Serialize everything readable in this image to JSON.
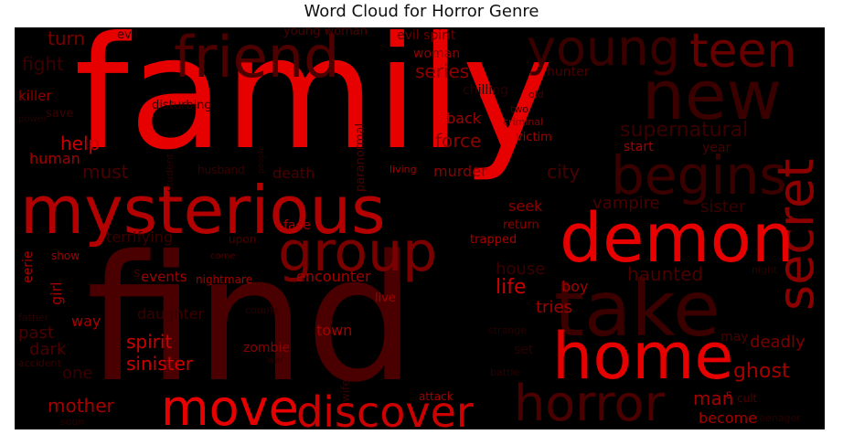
{
  "title": "Word Cloud for Horror Genre",
  "words": [
    {
      "text": "family",
      "color": "#e60000"
    },
    {
      "text": "find",
      "color": "#4a0000"
    },
    {
      "text": "mysterious",
      "color": "#b30000"
    },
    {
      "text": "friend",
      "color": "#4d0000"
    },
    {
      "text": "young",
      "color": "#3a0000"
    },
    {
      "text": "new",
      "color": "#3a0000"
    },
    {
      "text": "teen",
      "color": "#660000"
    },
    {
      "text": "begins",
      "color": "#3a0000"
    },
    {
      "text": "secret",
      "color": "#8c0000"
    },
    {
      "text": "demon",
      "color": "#e60000"
    },
    {
      "text": "group",
      "color": "#7a0000"
    },
    {
      "text": "take",
      "color": "#3a0000"
    },
    {
      "text": "home",
      "color": "#e60000"
    },
    {
      "text": "horror",
      "color": "#4a0000"
    },
    {
      "text": "move",
      "color": "#e60000"
    },
    {
      "text": "discover",
      "color": "#cc0000"
    },
    {
      "text": "turn",
      "color": "#7a0000"
    },
    {
      "text": "fight",
      "color": "#3a0000"
    },
    {
      "text": "evil",
      "color": "#2a0000"
    },
    {
      "text": "young woman",
      "color": "#4d0000"
    },
    {
      "text": "evil spirit",
      "color": "#660000"
    },
    {
      "text": "woman",
      "color": "#8c0000"
    },
    {
      "text": "series",
      "color": "#8c0000"
    },
    {
      "text": "chilling",
      "color": "#2a0000"
    },
    {
      "text": "hunter",
      "color": "#4a0000"
    },
    {
      "text": "old",
      "color": "#4a0000"
    },
    {
      "text": "two",
      "color": "#3a0000"
    },
    {
      "text": "criminal",
      "color": "#8c0000"
    },
    {
      "text": "killer",
      "color": "#8c0000"
    },
    {
      "text": "save",
      "color": "#3a0000"
    },
    {
      "text": "power",
      "color": "#2a0000"
    },
    {
      "text": "disturbing",
      "color": "#2a0000"
    },
    {
      "text": "paranormal",
      "color": "#4d0000"
    },
    {
      "text": "back",
      "color": "#a30000"
    },
    {
      "text": "victim",
      "color": "#a30000"
    },
    {
      "text": "supernatural",
      "color": "#3a0000"
    },
    {
      "text": "help",
      "color": "#cc0000"
    },
    {
      "text": "student",
      "color": "#2a0000"
    },
    {
      "text": "people",
      "color": "#2a0000"
    },
    {
      "text": "force",
      "color": "#8c0000"
    },
    {
      "text": "start",
      "color": "#a30000"
    },
    {
      "text": "year",
      "color": "#4a0000"
    },
    {
      "text": "human",
      "color": "#a30000"
    },
    {
      "text": "must",
      "color": "#4a0000"
    },
    {
      "text": "husband",
      "color": "#3a0000"
    },
    {
      "text": "death",
      "color": "#4a0000"
    },
    {
      "text": "living",
      "color": "#a30000"
    },
    {
      "text": "murder",
      "color": "#8c0000"
    },
    {
      "text": "city",
      "color": "#4a0000"
    },
    {
      "text": "vampire",
      "color": "#4a0000"
    },
    {
      "text": "sister",
      "color": "#3a0000"
    },
    {
      "text": "face",
      "color": "#a30000"
    },
    {
      "text": "seek",
      "color": "#8c0000"
    },
    {
      "text": "return",
      "color": "#8c0000"
    },
    {
      "text": "terrifying",
      "color": "#3a0000"
    },
    {
      "text": "upon",
      "color": "#4a0000"
    },
    {
      "text": "trapped",
      "color": "#a30000"
    },
    {
      "text": "eerie",
      "color": "#a30000"
    },
    {
      "text": "show",
      "color": "#a30000"
    },
    {
      "text": "come",
      "color": "#4a0000"
    },
    {
      "text": "house",
      "color": "#3a0000"
    },
    {
      "text": "haunted",
      "color": "#4a0000"
    },
    {
      "text": "night",
      "color": "#2a0000"
    },
    {
      "text": "girl",
      "color": "#a30000"
    },
    {
      "text": "events",
      "color": "#a30000"
    },
    {
      "text": "nightmare",
      "color": "#a30000"
    },
    {
      "text": "encounter",
      "color": "#a30000"
    },
    {
      "text": "life",
      "color": "#cc0000"
    },
    {
      "text": "boy",
      "color": "#a30000"
    },
    {
      "text": "tries",
      "color": "#a30000"
    },
    {
      "text": "live",
      "color": "#a30000"
    },
    {
      "text": "father",
      "color": "#2a0000"
    },
    {
      "text": "past",
      "color": "#4a0000"
    },
    {
      "text": "way",
      "color": "#a30000"
    },
    {
      "text": "daughter",
      "color": "#3a0000"
    },
    {
      "text": "couple",
      "color": "#2a0000"
    },
    {
      "text": "town",
      "color": "#a30000"
    },
    {
      "text": "strange",
      "color": "#2a0000"
    },
    {
      "text": "dark",
      "color": "#4a0000"
    },
    {
      "text": "spirit",
      "color": "#cc0000"
    },
    {
      "text": "zombie",
      "color": "#8c0000"
    },
    {
      "text": "may",
      "color": "#4a0000"
    },
    {
      "text": "deadly",
      "color": "#7a0000"
    },
    {
      "text": "set",
      "color": "#2a0000"
    },
    {
      "text": "accident",
      "color": "#3a0000"
    },
    {
      "text": "one",
      "color": "#3a0000"
    },
    {
      "text": "sinister",
      "color": "#cc0000"
    },
    {
      "text": "war",
      "color": "#2a0000"
    },
    {
      "text": "wife",
      "color": "#3a0000"
    },
    {
      "text": "battle",
      "color": "#2a0000"
    },
    {
      "text": "ghost",
      "color": "#a30000"
    },
    {
      "text": "man",
      "color": "#a30000"
    },
    {
      "text": "cult",
      "color": "#4a0000"
    },
    {
      "text": "mother",
      "color": "#a30000"
    },
    {
      "text": "soon",
      "color": "#2a0000"
    },
    {
      "text": "attack",
      "color": "#a30000"
    },
    {
      "text": "become",
      "color": "#a30000"
    },
    {
      "text": "teenager",
      "color": "#2a0000"
    },
    {
      "text": "s",
      "color": "#4a0000"
    },
    {
      "text": "s",
      "color": "#a30000"
    }
  ]
}
